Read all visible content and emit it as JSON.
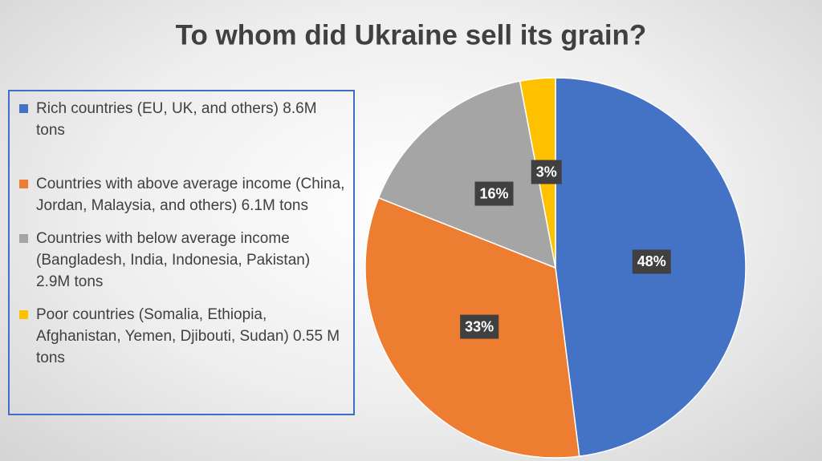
{
  "chart_data": {
    "type": "pie",
    "title": "To whom did Ukraine sell its grain?",
    "categories": [
      "Rich countries (EU, UK, and others) 8.6M tons",
      "Countries with above average income (China, Jordan, Malaysia, and others) 6.1M tons",
      "Countries with below average income (Bangladesh, India, Indonesia, Pakistan) 2.9M tons",
      "Poor countries (Somalia, Ethiopia, Afghanistan, Yemen, Djibouti, Sudan) 0.55 M tons"
    ],
    "values": [
      48,
      33,
      16,
      3
    ],
    "value_labels": [
      "48%",
      "33%",
      "16%",
      "3%"
    ],
    "colors": [
      "#4472c4",
      "#ed7d31",
      "#a5a5a5",
      "#ffc000"
    ],
    "legend": "left"
  }
}
